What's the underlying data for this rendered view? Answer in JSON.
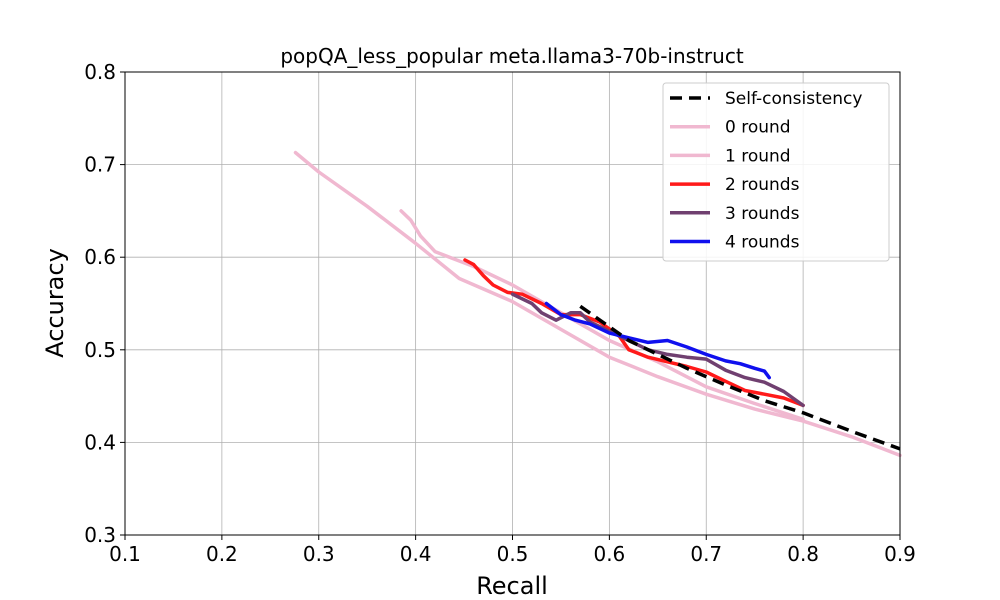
{
  "chart_data": {
    "type": "line",
    "title": "popQA_less_popular meta.llama3-70b-instruct",
    "xlabel": "Recall",
    "ylabel": "Accuracy",
    "xlim": [
      0.1,
      0.9
    ],
    "ylim": [
      0.3,
      0.8
    ],
    "xticks": [
      "0.1",
      "0.2",
      "0.3",
      "0.4",
      "0.5",
      "0.6",
      "0.7",
      "0.8",
      "0.9"
    ],
    "yticks": [
      "0.3",
      "0.4",
      "0.5",
      "0.6",
      "0.7",
      "0.8"
    ],
    "grid": true,
    "legend_position": "top-right",
    "series": [
      {
        "name": "Self-consistency",
        "color": "#000000",
        "style": "dashed",
        "x": [
          0.57,
          0.62,
          0.68,
          0.72,
          0.76,
          0.8,
          0.85,
          0.9
        ],
        "y": [
          0.547,
          0.51,
          0.48,
          0.462,
          0.445,
          0.432,
          0.412,
          0.393
        ]
      },
      {
        "name": "0 round",
        "color": "#f0b8d0",
        "style": "solid",
        "x": [
          0.276,
          0.3,
          0.35,
          0.4,
          0.445,
          0.5,
          0.55,
          0.6,
          0.65,
          0.7,
          0.75,
          0.8,
          0.85,
          0.9
        ],
        "y": [
          0.713,
          0.692,
          0.655,
          0.615,
          0.577,
          0.552,
          0.522,
          0.492,
          0.471,
          0.452,
          0.436,
          0.423,
          0.406,
          0.386
        ]
      },
      {
        "name": "1 round",
        "color": "#f0b8d0",
        "style": "solid",
        "x": [
          0.385,
          0.395,
          0.405,
          0.42,
          0.44,
          0.46,
          0.5,
          0.55,
          0.6,
          0.65,
          0.7,
          0.75,
          0.8
        ],
        "y": [
          0.65,
          0.64,
          0.623,
          0.606,
          0.598,
          0.59,
          0.57,
          0.54,
          0.51,
          0.487,
          0.46,
          0.442,
          0.425
        ]
      },
      {
        "name": "2 rounds",
        "color": "#ff1a1a",
        "style": "solid",
        "x": [
          0.451,
          0.46,
          0.47,
          0.48,
          0.495,
          0.51,
          0.53,
          0.55,
          0.57,
          0.59,
          0.61,
          0.62,
          0.64,
          0.66,
          0.68,
          0.7,
          0.72,
          0.74,
          0.76,
          0.78,
          0.8
        ],
        "y": [
          0.597,
          0.592,
          0.58,
          0.57,
          0.562,
          0.56,
          0.55,
          0.538,
          0.538,
          0.53,
          0.515,
          0.5,
          0.492,
          0.487,
          0.482,
          0.476,
          0.466,
          0.456,
          0.452,
          0.448,
          0.44
        ]
      },
      {
        "name": "3 rounds",
        "color": "#704070",
        "style": "solid",
        "x": [
          0.5,
          0.52,
          0.53,
          0.545,
          0.56,
          0.57,
          0.58,
          0.6,
          0.62,
          0.64,
          0.66,
          0.68,
          0.7,
          0.72,
          0.74,
          0.76,
          0.78,
          0.8
        ],
        "y": [
          0.56,
          0.55,
          0.54,
          0.532,
          0.54,
          0.54,
          0.53,
          0.52,
          0.51,
          0.5,
          0.495,
          0.492,
          0.49,
          0.478,
          0.47,
          0.465,
          0.455,
          0.44
        ]
      },
      {
        "name": "4 rounds",
        "color": "#1010ee",
        "style": "solid",
        "x": [
          0.535,
          0.55,
          0.565,
          0.58,
          0.6,
          0.62,
          0.64,
          0.66,
          0.68,
          0.7,
          0.72,
          0.735,
          0.75,
          0.76,
          0.765
        ],
        "y": [
          0.55,
          0.538,
          0.532,
          0.528,
          0.518,
          0.513,
          0.508,
          0.51,
          0.503,
          0.495,
          0.488,
          0.485,
          0.48,
          0.477,
          0.47
        ]
      }
    ]
  }
}
